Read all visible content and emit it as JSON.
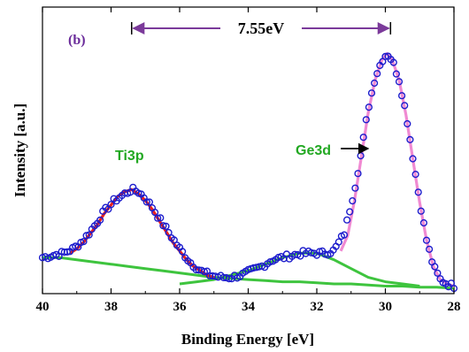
{
  "chart_data": {
    "type": "scatter",
    "title": "",
    "panel_label": "(b)",
    "xlabel": "Binding Energy [eV]",
    "ylabel": "Intensity [a.u.]",
    "xlim": [
      40,
      28
    ],
    "x_reversed": true,
    "ylim": [
      0,
      1.08
    ],
    "y_ticks_shown": false,
    "grid": false,
    "x_ticks": [
      40,
      38,
      36,
      34,
      32,
      30,
      28
    ],
    "annotations": {
      "ti3p": "Ti3p",
      "ge3d": "Ge3d",
      "separation": "7.55eV"
    },
    "separation_arrow_x": [
      37.4,
      29.85
    ],
    "ge3d_arrow_x": [
      31.3,
      30.5
    ],
    "colors": {
      "data_markers": "#1c1ccc",
      "ti3p_fit": "#e8201e",
      "ge3d_fit": "#f08ad2",
      "component": "#3ec43e",
      "separation_arrow": "#7b3a9a",
      "ti3p_label": "#22a822",
      "ge3d_label": "#22a822",
      "panel_label": "#6a2b9a"
    },
    "series": [
      {
        "kind": "measured",
        "marker": "open-circle",
        "x": [
          40.0,
          39.7,
          39.4,
          39.1,
          38.8,
          38.5,
          38.2,
          37.9,
          37.6,
          37.4,
          37.2,
          37.0,
          36.8,
          36.6,
          36.3,
          36.0,
          35.7,
          35.4,
          35.1,
          34.8,
          34.5,
          34.2,
          33.9,
          33.6,
          33.3,
          33.0,
          32.7,
          32.4,
          32.1,
          31.8,
          31.5,
          31.2,
          30.9,
          30.7,
          30.5,
          30.3,
          30.1,
          29.95,
          29.8,
          29.6,
          29.4,
          29.2,
          29.0,
          28.8,
          28.6,
          28.4,
          28.2,
          28.0
        ],
        "y": [
          0.14,
          0.15,
          0.16,
          0.18,
          0.22,
          0.28,
          0.35,
          0.4,
          0.43,
          0.45,
          0.44,
          0.41,
          0.37,
          0.32,
          0.25,
          0.18,
          0.12,
          0.08,
          0.06,
          0.05,
          0.05,
          0.06,
          0.08,
          0.1,
          0.13,
          0.14,
          0.15,
          0.16,
          0.16,
          0.16,
          0.17,
          0.25,
          0.45,
          0.62,
          0.82,
          0.96,
          1.04,
          1.07,
          1.04,
          0.95,
          0.8,
          0.6,
          0.4,
          0.22,
          0.1,
          0.04,
          0.02,
          0.01
        ]
      },
      {
        "kind": "fit",
        "name_label": "Ti3p",
        "x": [
          39.2,
          39.0,
          38.8,
          38.6,
          38.4,
          38.2,
          38.0,
          37.8,
          37.6,
          37.4,
          37.2,
          37.0,
          36.8,
          36.6,
          36.4,
          36.2,
          36.0,
          35.8,
          35.6,
          35.4,
          35.2,
          35.0
        ],
        "y": [
          0.16,
          0.18,
          0.21,
          0.25,
          0.29,
          0.34,
          0.38,
          0.42,
          0.44,
          0.45,
          0.43,
          0.4,
          0.36,
          0.31,
          0.26,
          0.21,
          0.17,
          0.13,
          0.1,
          0.08,
          0.06,
          0.05
        ]
      },
      {
        "kind": "fit",
        "name_label": "Ge3d",
        "x": [
          31.3,
          31.1,
          30.9,
          30.7,
          30.5,
          30.3,
          30.1,
          29.95,
          29.8,
          29.6,
          29.4,
          29.2,
          29.0,
          28.8,
          28.6,
          28.4,
          28.2,
          28.0
        ],
        "y": [
          0.17,
          0.24,
          0.4,
          0.6,
          0.8,
          0.95,
          1.04,
          1.07,
          1.04,
          0.95,
          0.79,
          0.59,
          0.39,
          0.22,
          0.1,
          0.04,
          0.02,
          0.01
        ]
      },
      {
        "kind": "component",
        "x": [
          40.0,
          39.5,
          39.0,
          38.5,
          38.0,
          37.5,
          37.0,
          36.5,
          36.0,
          35.5,
          35.0,
          34.5,
          34.0,
          33.5,
          33.0,
          32.5,
          32.0,
          31.5,
          31.0,
          30.5,
          30.0,
          29.5,
          29.0,
          28.5,
          28.0
        ],
        "y": [
          0.14,
          0.14,
          0.13,
          0.12,
          0.11,
          0.1,
          0.09,
          0.08,
          0.07,
          0.06,
          0.05,
          0.045,
          0.04,
          0.035,
          0.03,
          0.03,
          0.025,
          0.02,
          0.02,
          0.015,
          0.01,
          0.01,
          0.005,
          0.005,
          0.0
        ]
      },
      {
        "kind": "component",
        "x": [
          36.0,
          35.5,
          35.0,
          34.5,
          34.0,
          33.5,
          33.0,
          32.5,
          32.0,
          31.5,
          31.0,
          30.5,
          30.0,
          29.5,
          29.0
        ],
        "y": [
          0.02,
          0.03,
          0.04,
          0.06,
          0.08,
          0.11,
          0.14,
          0.16,
          0.16,
          0.13,
          0.09,
          0.05,
          0.03,
          0.02,
          0.01
        ]
      }
    ]
  }
}
